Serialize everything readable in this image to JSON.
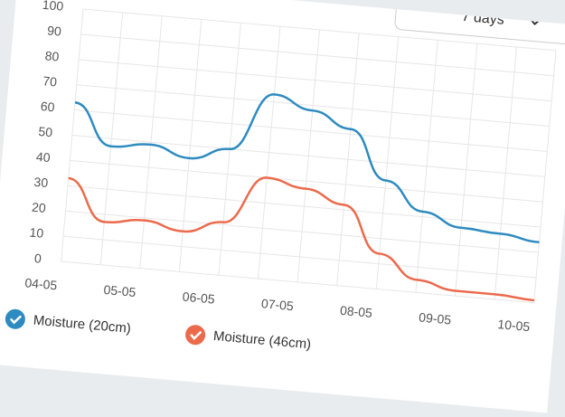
{
  "chart_data": {
    "type": "line",
    "dropdown": "7 days",
    "categories": [
      "04-05",
      null,
      "05-05",
      null,
      "06-05",
      null,
      "07-05",
      null,
      "08-05",
      null,
      "09-05",
      null,
      "10-05"
    ],
    "series": [
      {
        "name": "Moisture (20cm)",
        "color": "#2e8bc0",
        "values": [
          63,
          47,
          49,
          45,
          50,
          73,
          68,
          62,
          43,
          32,
          27,
          26,
          24
        ]
      },
      {
        "name": "Moisture (46cm)",
        "color": "#ec6a4c",
        "values": [
          33,
          17,
          19,
          16,
          21,
          40,
          37,
          32,
          14,
          5,
          2,
          2,
          1
        ]
      }
    ],
    "ylim": [
      0,
      100
    ],
    "yticks": [
      0,
      10,
      20,
      30,
      40,
      50,
      60,
      70,
      80,
      90,
      100
    ],
    "grid": true
  }
}
